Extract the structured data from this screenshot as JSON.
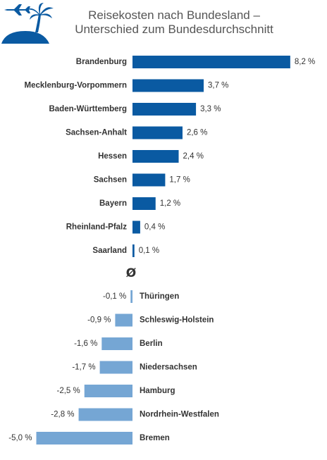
{
  "title_line1": "Reisekosten nach Bundesland –",
  "title_line2": "Unterschied zum Bundesdurchschnitt",
  "logo_icon": "palm-island-airplane-icon",
  "average_symbol": "Ø",
  "colors": {
    "positive": "#0a5aa2",
    "negative": "#75a6d4",
    "logo": "#0a5aa2",
    "text": "#333333"
  },
  "chart_data": {
    "type": "bar",
    "orientation": "horizontal",
    "unit": "%",
    "categories": [
      "Brandenburg",
      "Mecklenburg-Vorpommern",
      "Baden-Württemberg",
      "Sachsen-Anhalt",
      "Hessen",
      "Sachsen",
      "Bayern",
      "Rheinland-Pfalz",
      "Saarland",
      "Thüringen",
      "Schleswig-Holstein",
      "Berlin",
      "Niedersachsen",
      "Hamburg",
      "Nordrhein-Westfalen",
      "Bremen"
    ],
    "values": [
      8.2,
      3.7,
      3.3,
      2.6,
      2.4,
      1.7,
      1.2,
      0.4,
      0.1,
      -0.1,
      -0.9,
      -1.6,
      -1.7,
      -2.5,
      -2.8,
      -5.0
    ],
    "value_labels": [
      "8,2 %",
      "3,7 %",
      "3,3 %",
      "2,6 %",
      "2,4 %",
      "1,7 %",
      "1,2 %",
      "0,4 %",
      "0,1 %",
      "-0,1 %",
      "-0,9 %",
      "-1,6 %",
      "-1,7 %",
      "-2,5 %",
      "-2,8 %",
      "-5,0 %"
    ]
  }
}
